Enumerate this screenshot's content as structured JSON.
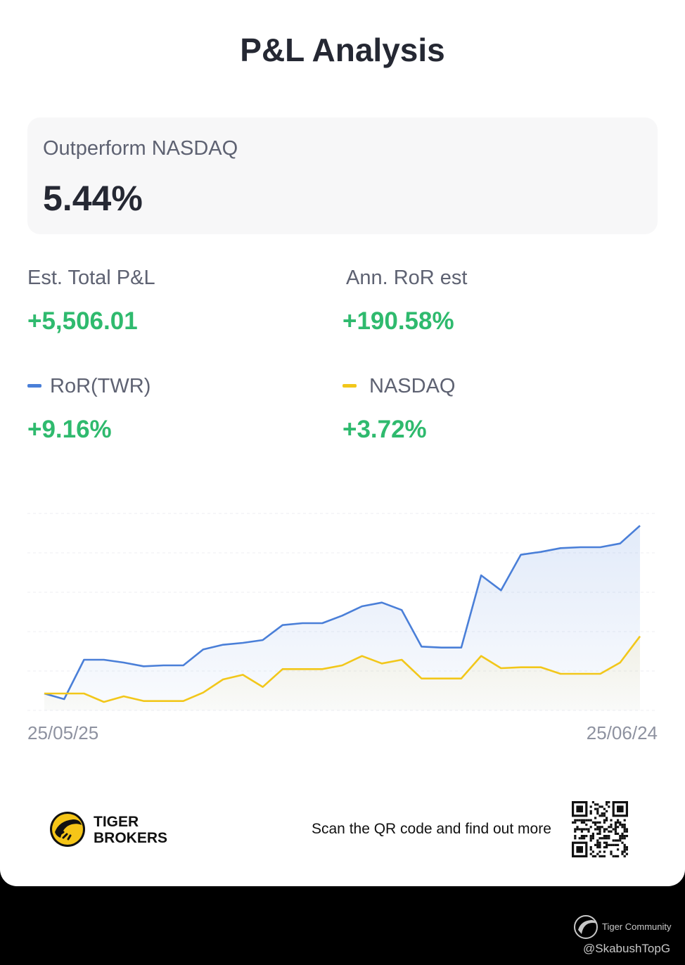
{
  "header": {
    "title": "P&L Analysis"
  },
  "outperform": {
    "label": "Outperform NASDAQ",
    "value": "5.44%"
  },
  "stats": {
    "total_pl_label": "Est. Total P&L",
    "total_pl_value": "+5,506.01",
    "ann_ror_label": "Ann. RoR est",
    "ann_ror_value": "+190.58%"
  },
  "legend": {
    "ror_label": "RoR(TWR)",
    "ror_value": "+9.16%",
    "nasdaq_label": "NASDAQ",
    "nasdaq_value": "+3.72%"
  },
  "colors": {
    "ror": "#4a7fd8",
    "nasdaq": "#f2c71a",
    "positive": "#2fba6e"
  },
  "chart_data": {
    "type": "line",
    "x_start": "25/05/25",
    "x_end": "25/06/24",
    "grid": "horizontal dashed",
    "y_axis_labels": "none",
    "series": [
      {
        "name": "RoR(TWR)",
        "values": [
          0.3,
          -0.3,
          3.9,
          3.9,
          3.6,
          3.2,
          3.3,
          3.3,
          5.0,
          5.5,
          5.7,
          6.0,
          7.6,
          7.8,
          7.8,
          8.6,
          9.6,
          10.0,
          9.2,
          5.3,
          5.2,
          5.2,
          12.9,
          11.3,
          15.1,
          15.4,
          15.8,
          15.9,
          15.9,
          16.3,
          18.2
        ]
      },
      {
        "name": "NASDAQ",
        "values": [
          0.3,
          0.3,
          0.3,
          -0.6,
          0.0,
          -0.5,
          -0.5,
          -0.5,
          0.4,
          1.8,
          2.3,
          1.0,
          2.9,
          2.9,
          2.9,
          3.3,
          4.3,
          3.5,
          3.9,
          1.9,
          1.9,
          1.9,
          4.3,
          3.0,
          3.1,
          3.1,
          2.4,
          2.4,
          2.4,
          3.6,
          6.4
        ]
      }
    ]
  },
  "footer": {
    "brand_line1": "TIGER",
    "brand_line2": "BROKERS",
    "scan_text": "Scan the QR code and find out more"
  },
  "watermark": {
    "community": "Tiger Community",
    "handle": "@SkabushTopG"
  }
}
